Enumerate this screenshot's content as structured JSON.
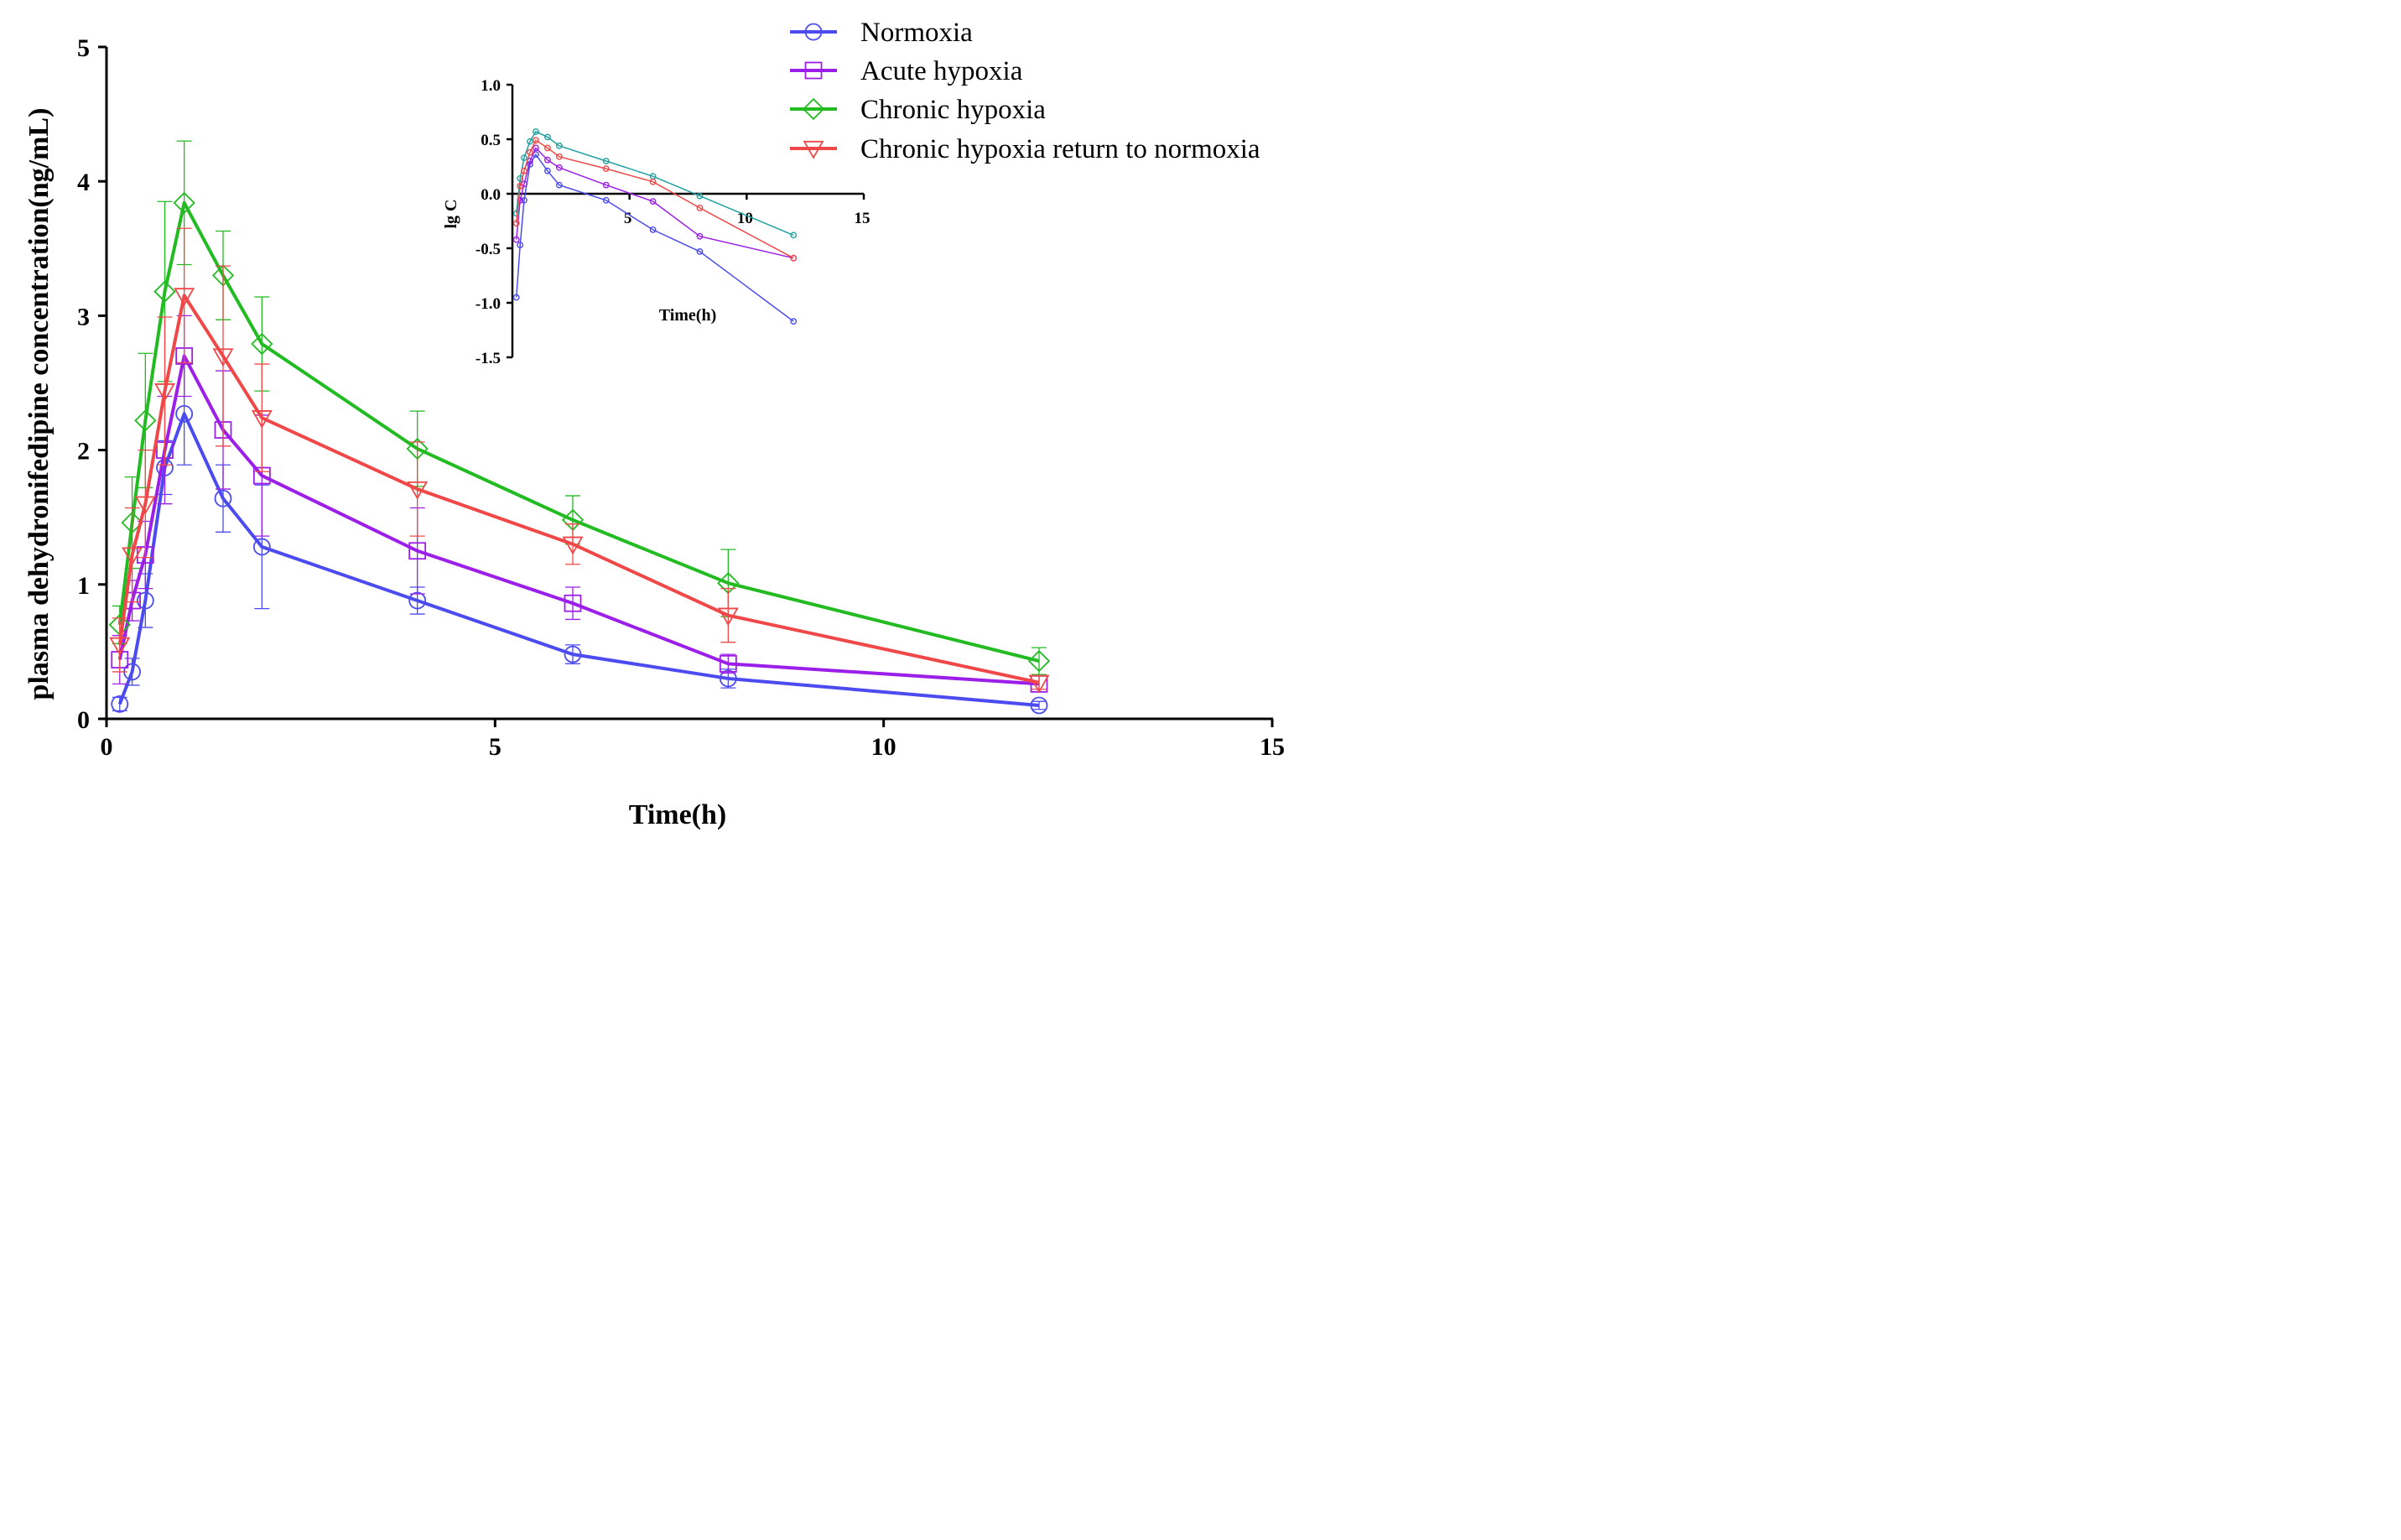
{
  "chart_data": [
    {
      "type": "line",
      "title": "",
      "xlabel": "Time(h)",
      "ylabel": "plasma dehydronifedipine concentration(ng/mL)",
      "xlim": [
        0,
        15
      ],
      "ylim": [
        0,
        5
      ],
      "xticks": [
        "0",
        "5",
        "10",
        "15"
      ],
      "yticks": [
        "0",
        "1",
        "2",
        "3",
        "4",
        "5"
      ],
      "grid": false,
      "legend_position": "top-right",
      "x": [
        0.17,
        0.33,
        0.5,
        0.75,
        1,
        1.5,
        2,
        4,
        6,
        8,
        12
      ],
      "series": [
        {
          "name": "Normoxia",
          "color": "#4b4bf0",
          "marker": "circle",
          "values": [
            0.11,
            0.35,
            0.88,
            1.87,
            2.27,
            1.64,
            1.28,
            0.88,
            0.48,
            0.3,
            0.1
          ],
          "errors": [
            0.05,
            0.1,
            0.2,
            0.2,
            0.38,
            0.25,
            0.46,
            0.1,
            0.07,
            0.07,
            0.03
          ]
        },
        {
          "name": "Acute hypoxia",
          "color": "#9b1fe8",
          "marker": "square",
          "values": [
            0.44,
            0.88,
            1.22,
            2.0,
            2.7,
            2.15,
            1.81,
            1.25,
            0.86,
            0.41,
            0.26
          ],
          "errors": [
            0.18,
            0.15,
            0.25,
            0.4,
            0.3,
            0.44,
            0.45,
            0.32,
            0.12,
            0.07,
            0.06
          ]
        },
        {
          "name": "Chronic hypoxia",
          "color": "#22bb22",
          "marker": "diamond",
          "values": [
            0.7,
            1.46,
            2.22,
            3.18,
            3.84,
            3.3,
            2.79,
            2.01,
            1.48,
            1.01,
            0.43
          ],
          "errors": [
            0.14,
            0.34,
            0.5,
            0.67,
            0.46,
            0.33,
            0.35,
            0.28,
            0.18,
            0.25,
            0.1
          ]
        },
        {
          "name": "Chronic hypoxia return to normoxia",
          "color": "#f04848",
          "marker": "triangle-down",
          "values": [
            0.55,
            1.22,
            1.6,
            2.44,
            3.15,
            2.7,
            2.24,
            1.71,
            1.3,
            0.77,
            0.27
          ],
          "errors": [
            0.2,
            0.35,
            0.4,
            0.55,
            0.5,
            0.67,
            0.4,
            0.35,
            0.15,
            0.2,
            0.05
          ]
        }
      ]
    },
    {
      "type": "line",
      "title": "",
      "xlabel": "Time(h)",
      "ylabel": "lg C",
      "xlim": [
        0,
        15
      ],
      "ylim": [
        -1.5,
        1.0
      ],
      "xticks": [
        "5",
        "10",
        "15"
      ],
      "yticks": [
        "1.0",
        "0.5",
        "0.0",
        "-0.5",
        "-1.0",
        "-1.5"
      ],
      "grid": false,
      "x": [
        0.17,
        0.33,
        0.5,
        0.75,
        1,
        1.5,
        2,
        4,
        6,
        8,
        12
      ],
      "series": [
        {
          "name": "Normoxia",
          "color": "#4b4bf0",
          "values": [
            -0.95,
            -0.47,
            -0.06,
            0.27,
            0.36,
            0.21,
            0.08,
            -0.06,
            -0.33,
            -0.53,
            -1.17
          ]
        },
        {
          "name": "Acute hypoxia",
          "color": "#9b1fe8",
          "values": [
            -0.42,
            -0.06,
            0.09,
            0.3,
            0.42,
            0.31,
            0.24,
            0.08,
            -0.07,
            -0.39,
            -0.59
          ]
        },
        {
          "name": "Chronic hypoxia",
          "color": "#22a0a0",
          "values": [
            -0.18,
            0.14,
            0.33,
            0.48,
            0.57,
            0.52,
            0.44,
            0.3,
            0.16,
            -0.02,
            -0.38
          ]
        },
        {
          "name": "Chronic hypoxia return to normoxia",
          "color": "#f04848",
          "values": [
            -0.27,
            0.07,
            0.21,
            0.38,
            0.49,
            0.42,
            0.34,
            0.23,
            0.11,
            -0.13,
            -0.59
          ]
        }
      ]
    }
  ]
}
